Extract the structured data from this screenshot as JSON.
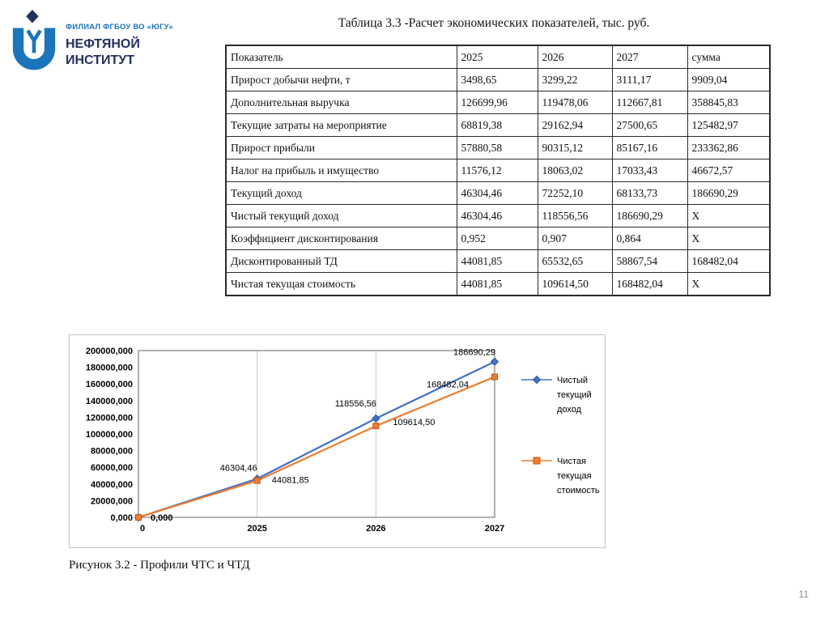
{
  "slide": {
    "page_number": "11"
  },
  "logo": {
    "org_line": "ФИЛИАЛ ФГБОУ ВО «ЮГУ»",
    "name_line1": "НЕФТЯНОЙ",
    "name_line2": "ИНСТИТУТ",
    "accent_color": "#1b75bb",
    "navy_color": "#22315e"
  },
  "table": {
    "title": "Таблица 3.3 -Расчет экономических показателей, тыс. руб.",
    "headers": [
      "Показатель",
      "2025",
      "2026",
      "2027",
      "сумма"
    ],
    "rows": [
      [
        "Прирост добычи нефти, т",
        "3498,65",
        "3299,22",
        "3111,17",
        "9909,04"
      ],
      [
        "Дополнительная выручка",
        "126699,96",
        "119478,06",
        "112667,81",
        "358845,83"
      ],
      [
        "Текущие затраты на мероприятие",
        "68819,38",
        "29162,94",
        "27500,65",
        "125482,97"
      ],
      [
        "Прирост прибыли",
        "57880,58",
        "90315,12",
        "85167,16",
        "233362,86"
      ],
      [
        "Налог на прибыль и имущество",
        "11576,12",
        "18063,02",
        "17033,43",
        "46672,57"
      ],
      [
        "Текущий доход",
        "46304,46",
        "72252,10",
        "68133,73",
        "186690,29"
      ],
      [
        "Чистый текущий доход",
        "46304,46",
        "118556,56",
        "186690,29",
        "X"
      ],
      [
        "Коэффициент дисконтирования",
        "0,952",
        "0,907",
        "0,864",
        "X"
      ],
      [
        "Дисконтированный ТД",
        "44081,85",
        "65532,65",
        "58867,54",
        "168482,04"
      ],
      [
        "Чистая текущая стоимость",
        "44081,85",
        "109614,50",
        "168482,04",
        "X"
      ]
    ]
  },
  "figure": {
    "caption": "Рисунок 3.2 - Профили ЧТС и ЧТД"
  },
  "chart_data": {
    "type": "line",
    "x_categories": [
      "0",
      "2025",
      "2026",
      "2027"
    ],
    "ylim": [
      0,
      200000
    ],
    "y_step": 20000,
    "y_ticks": [
      "200000,000",
      "180000,000",
      "160000,000",
      "140000,000",
      "120000,000",
      "100000,000",
      "80000,000",
      "60000,000",
      "40000,000",
      "20000,000",
      "0,000"
    ],
    "grid": "vertical",
    "legend_position": "right",
    "series": [
      {
        "name": "Чистый текущий доход",
        "color": "#4472C4",
        "edge": "#2f5597",
        "marker": "diamond",
        "values": [
          0,
          46304.46,
          118556.56,
          186690.29
        ],
        "labels": [
          "0,000",
          "46304,46",
          "118556,56",
          "186690,29"
        ],
        "label_offsets": [
          [
            15,
            4,
            "start",
            "bold"
          ],
          [
            -23,
            -10
          ],
          [
            -25,
            -15
          ],
          [
            -25,
            -8
          ]
        ]
      },
      {
        "name": "Чистая текущая стоимость",
        "color": "#ED7D31",
        "edge": "#c55a11",
        "marker": "square",
        "values": [
          0,
          44081.85,
          109614.5,
          168482.04
        ],
        "labels": [
          "",
          "44081,85",
          "109614,50",
          "168482,04"
        ],
        "label_offsets": [
          [
            0,
            0
          ],
          [
            41,
            3
          ],
          [
            47,
            -1
          ],
          [
            -58,
            13
          ]
        ]
      }
    ]
  }
}
